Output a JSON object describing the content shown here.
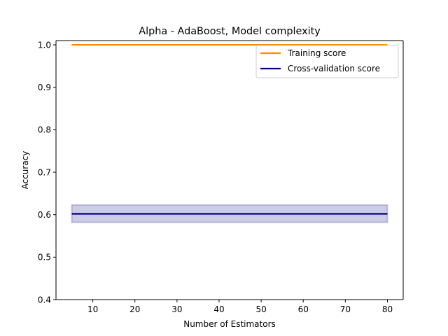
{
  "chart_data": {
    "type": "line",
    "title": "Alpha - AdaBoost, Model complexity",
    "xlabel": "Number of Estimators",
    "ylabel": "Accuracy",
    "xlim": [
      1.25,
      83.75
    ],
    "ylim": [
      0.4,
      1.01
    ],
    "xticks": [
      10,
      20,
      30,
      40,
      50,
      60,
      70,
      80
    ],
    "yticks": [
      0.4,
      0.5,
      0.6,
      0.7,
      0.8,
      0.9,
      1.0
    ],
    "xtick_labels": [
      "10",
      "20",
      "30",
      "40",
      "50",
      "60",
      "70",
      "80"
    ],
    "ytick_labels": [
      "0.4",
      "0.5",
      "0.6",
      "0.7",
      "0.8",
      "0.9",
      "1.0"
    ],
    "grid": false,
    "legend_position": "top-right",
    "series": [
      {
        "name": "Training score",
        "color": "#ff8c00",
        "x": [
          5,
          80
        ],
        "y": [
          1.0,
          1.0
        ],
        "band_lower": [
          1.0,
          1.0
        ],
        "band_upper": [
          1.0,
          1.0
        ],
        "band_color": "#ff8c00"
      },
      {
        "name": "Cross-validation score",
        "color": "#000080",
        "x": [
          5,
          80
        ],
        "y": [
          0.602,
          0.602
        ],
        "band_lower": [
          0.582,
          0.582
        ],
        "band_upper": [
          0.623,
          0.623
        ],
        "band_color": "#000080"
      }
    ]
  }
}
